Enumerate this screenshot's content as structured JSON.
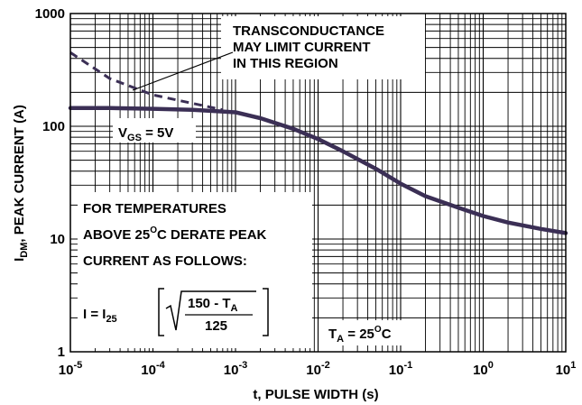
{
  "chart_data": {
    "type": "line",
    "xlabel": "t, PULSE WIDTH (s)",
    "ylabel": {
      "main": "I",
      "sub": "DM",
      "rest": ", PEAK CURRENT (A)"
    },
    "x_scale": "log",
    "y_scale": "log",
    "xlim": [
      1e-05,
      10
    ],
    "ylim": [
      1,
      1000
    ],
    "grid": true,
    "x_ticks": [
      {
        "value": 1e-05,
        "base": "10",
        "exp": "-5"
      },
      {
        "value": 0.0001,
        "base": "10",
        "exp": "-4"
      },
      {
        "value": 0.001,
        "base": "10",
        "exp": "-3"
      },
      {
        "value": 0.01,
        "base": "10",
        "exp": "-2"
      },
      {
        "value": 0.1,
        "base": "10",
        "exp": "-1"
      },
      {
        "value": 1,
        "base": "10",
        "exp": "0"
      },
      {
        "value": 10,
        "base": "10",
        "exp": "1"
      }
    ],
    "y_ticks": [
      {
        "value": 1,
        "label": "1"
      },
      {
        "value": 10,
        "label": "10"
      },
      {
        "value": 100,
        "label": "100"
      },
      {
        "value": 1000,
        "label": "1000"
      }
    ],
    "series": [
      {
        "style": "solid",
        "color": "#3b2f55",
        "points": [
          [
            1e-05,
            145
          ],
          [
            3e-05,
            145
          ],
          [
            0.0001,
            143
          ],
          [
            0.0003,
            140
          ],
          [
            0.001,
            133
          ],
          [
            0.002,
            118
          ],
          [
            0.005,
            95
          ],
          [
            0.01,
            77
          ],
          [
            0.02,
            60
          ],
          [
            0.05,
            42
          ],
          [
            0.1,
            31
          ],
          [
            0.2,
            24
          ],
          [
            0.5,
            19
          ],
          [
            1,
            16
          ],
          [
            2,
            14
          ],
          [
            5,
            12.3
          ],
          [
            10,
            11.3
          ]
        ]
      },
      {
        "style": "dashed",
        "color": "#3b2f55",
        "points": [
          [
            1e-05,
            450
          ],
          [
            3e-05,
            265
          ],
          [
            0.0001,
            190
          ],
          [
            0.0007,
            140
          ]
        ]
      }
    ],
    "annotations": {
      "transconductance": [
        "TRANSCONDUCTANCE",
        "MAY LIMIT CURRENT",
        "IN THIS REGION"
      ],
      "vgs": {
        "main": "V",
        "sub": "GS",
        "rest": " = 5V"
      },
      "derate": [
        "FOR TEMPERATURES",
        "ABOVE 25",
        "C DERATE PEAK",
        "CURRENT AS FOLLOWS:"
      ],
      "degree_mark": "O",
      "formula": {
        "lhs": "I = I",
        "lhs_sub": "25",
        "numerator": "150 - T",
        "numerator_sub": "A",
        "denominator": "125"
      },
      "ta": {
        "main": "T",
        "sub": "A",
        "rest": " = 25",
        "deg": "O",
        "unit": "C"
      }
    }
  }
}
